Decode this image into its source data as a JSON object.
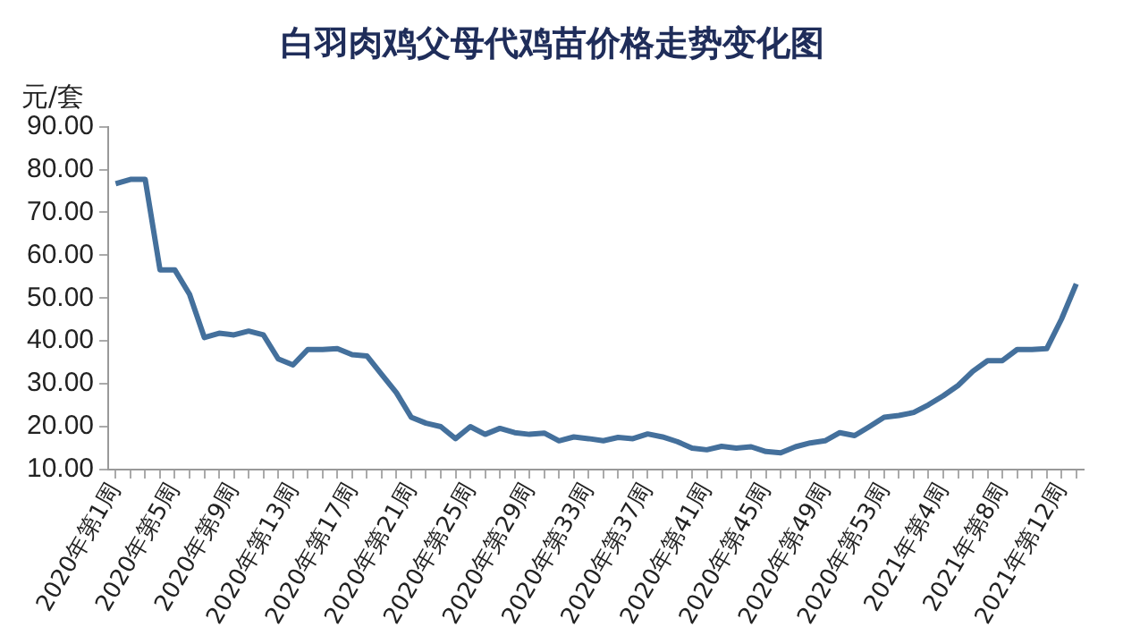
{
  "chart_data": {
    "type": "line",
    "title": "白羽肉鸡父母代鸡苗价格走势变化图",
    "ylabel": "元/套",
    "categories": [
      "2020年第1周",
      null,
      null,
      null,
      "2020年第5周",
      null,
      null,
      null,
      "2020年第9周",
      null,
      null,
      null,
      "2020年第13周",
      null,
      null,
      null,
      "2020年第17周",
      null,
      null,
      null,
      "2020年第21周",
      null,
      null,
      null,
      "2020年第25周",
      null,
      null,
      null,
      "2020年第29周",
      null,
      null,
      null,
      "2020年第33周",
      null,
      null,
      null,
      "2020年第37周",
      null,
      null,
      null,
      "2020年第41周",
      null,
      null,
      null,
      "2020年第45周",
      null,
      null,
      null,
      "2020年第49周",
      null,
      null,
      null,
      "2020年第53周",
      null,
      null,
      null,
      "2021年第4周",
      null,
      null,
      null,
      "2021年第8周",
      null,
      null,
      null,
      "2021年第12周",
      null
    ],
    "series": [
      {
        "color": "#44709c",
        "values": [
          76.7,
          77.7,
          77.7,
          56.6,
          56.6,
          50.9,
          40.8,
          41.8,
          41.4,
          42.3,
          41.4,
          35.8,
          34.4,
          38.0,
          38.0,
          38.2,
          36.8,
          36.5,
          32.2,
          27.9,
          22.2,
          20.8,
          20.0,
          17.2,
          20.0,
          18.2,
          19.6,
          18.6,
          18.2,
          18.5,
          16.7,
          17.6,
          17.2,
          16.7,
          17.5,
          17.2,
          18.3,
          17.6,
          16.5,
          15.0,
          14.6,
          15.4,
          15.0,
          15.3,
          14.2,
          13.9,
          15.3,
          16.2,
          16.7,
          18.6,
          17.9,
          20.0,
          22.2,
          22.6,
          23.3,
          25.1,
          27.2,
          29.6,
          32.9,
          35.4,
          35.4,
          38.0,
          38.0,
          38.2,
          45.1,
          53.3
        ]
      }
    ],
    "ylim": [
      10,
      90
    ],
    "yticks": [
      {
        "value": 10,
        "label": "10.00"
      },
      {
        "value": 20,
        "label": "20.00"
      },
      {
        "value": 30,
        "label": "30.00"
      },
      {
        "value": 40,
        "label": "40.00"
      },
      {
        "value": 50,
        "label": "50.00"
      },
      {
        "value": 60,
        "label": "60.00"
      },
      {
        "value": 70,
        "label": "70.00"
      },
      {
        "value": 80,
        "label": "80.00"
      },
      {
        "value": 90,
        "label": "90.00"
      }
    ],
    "grid": false,
    "legend": false,
    "marker": "none",
    "line_style": "solid"
  }
}
